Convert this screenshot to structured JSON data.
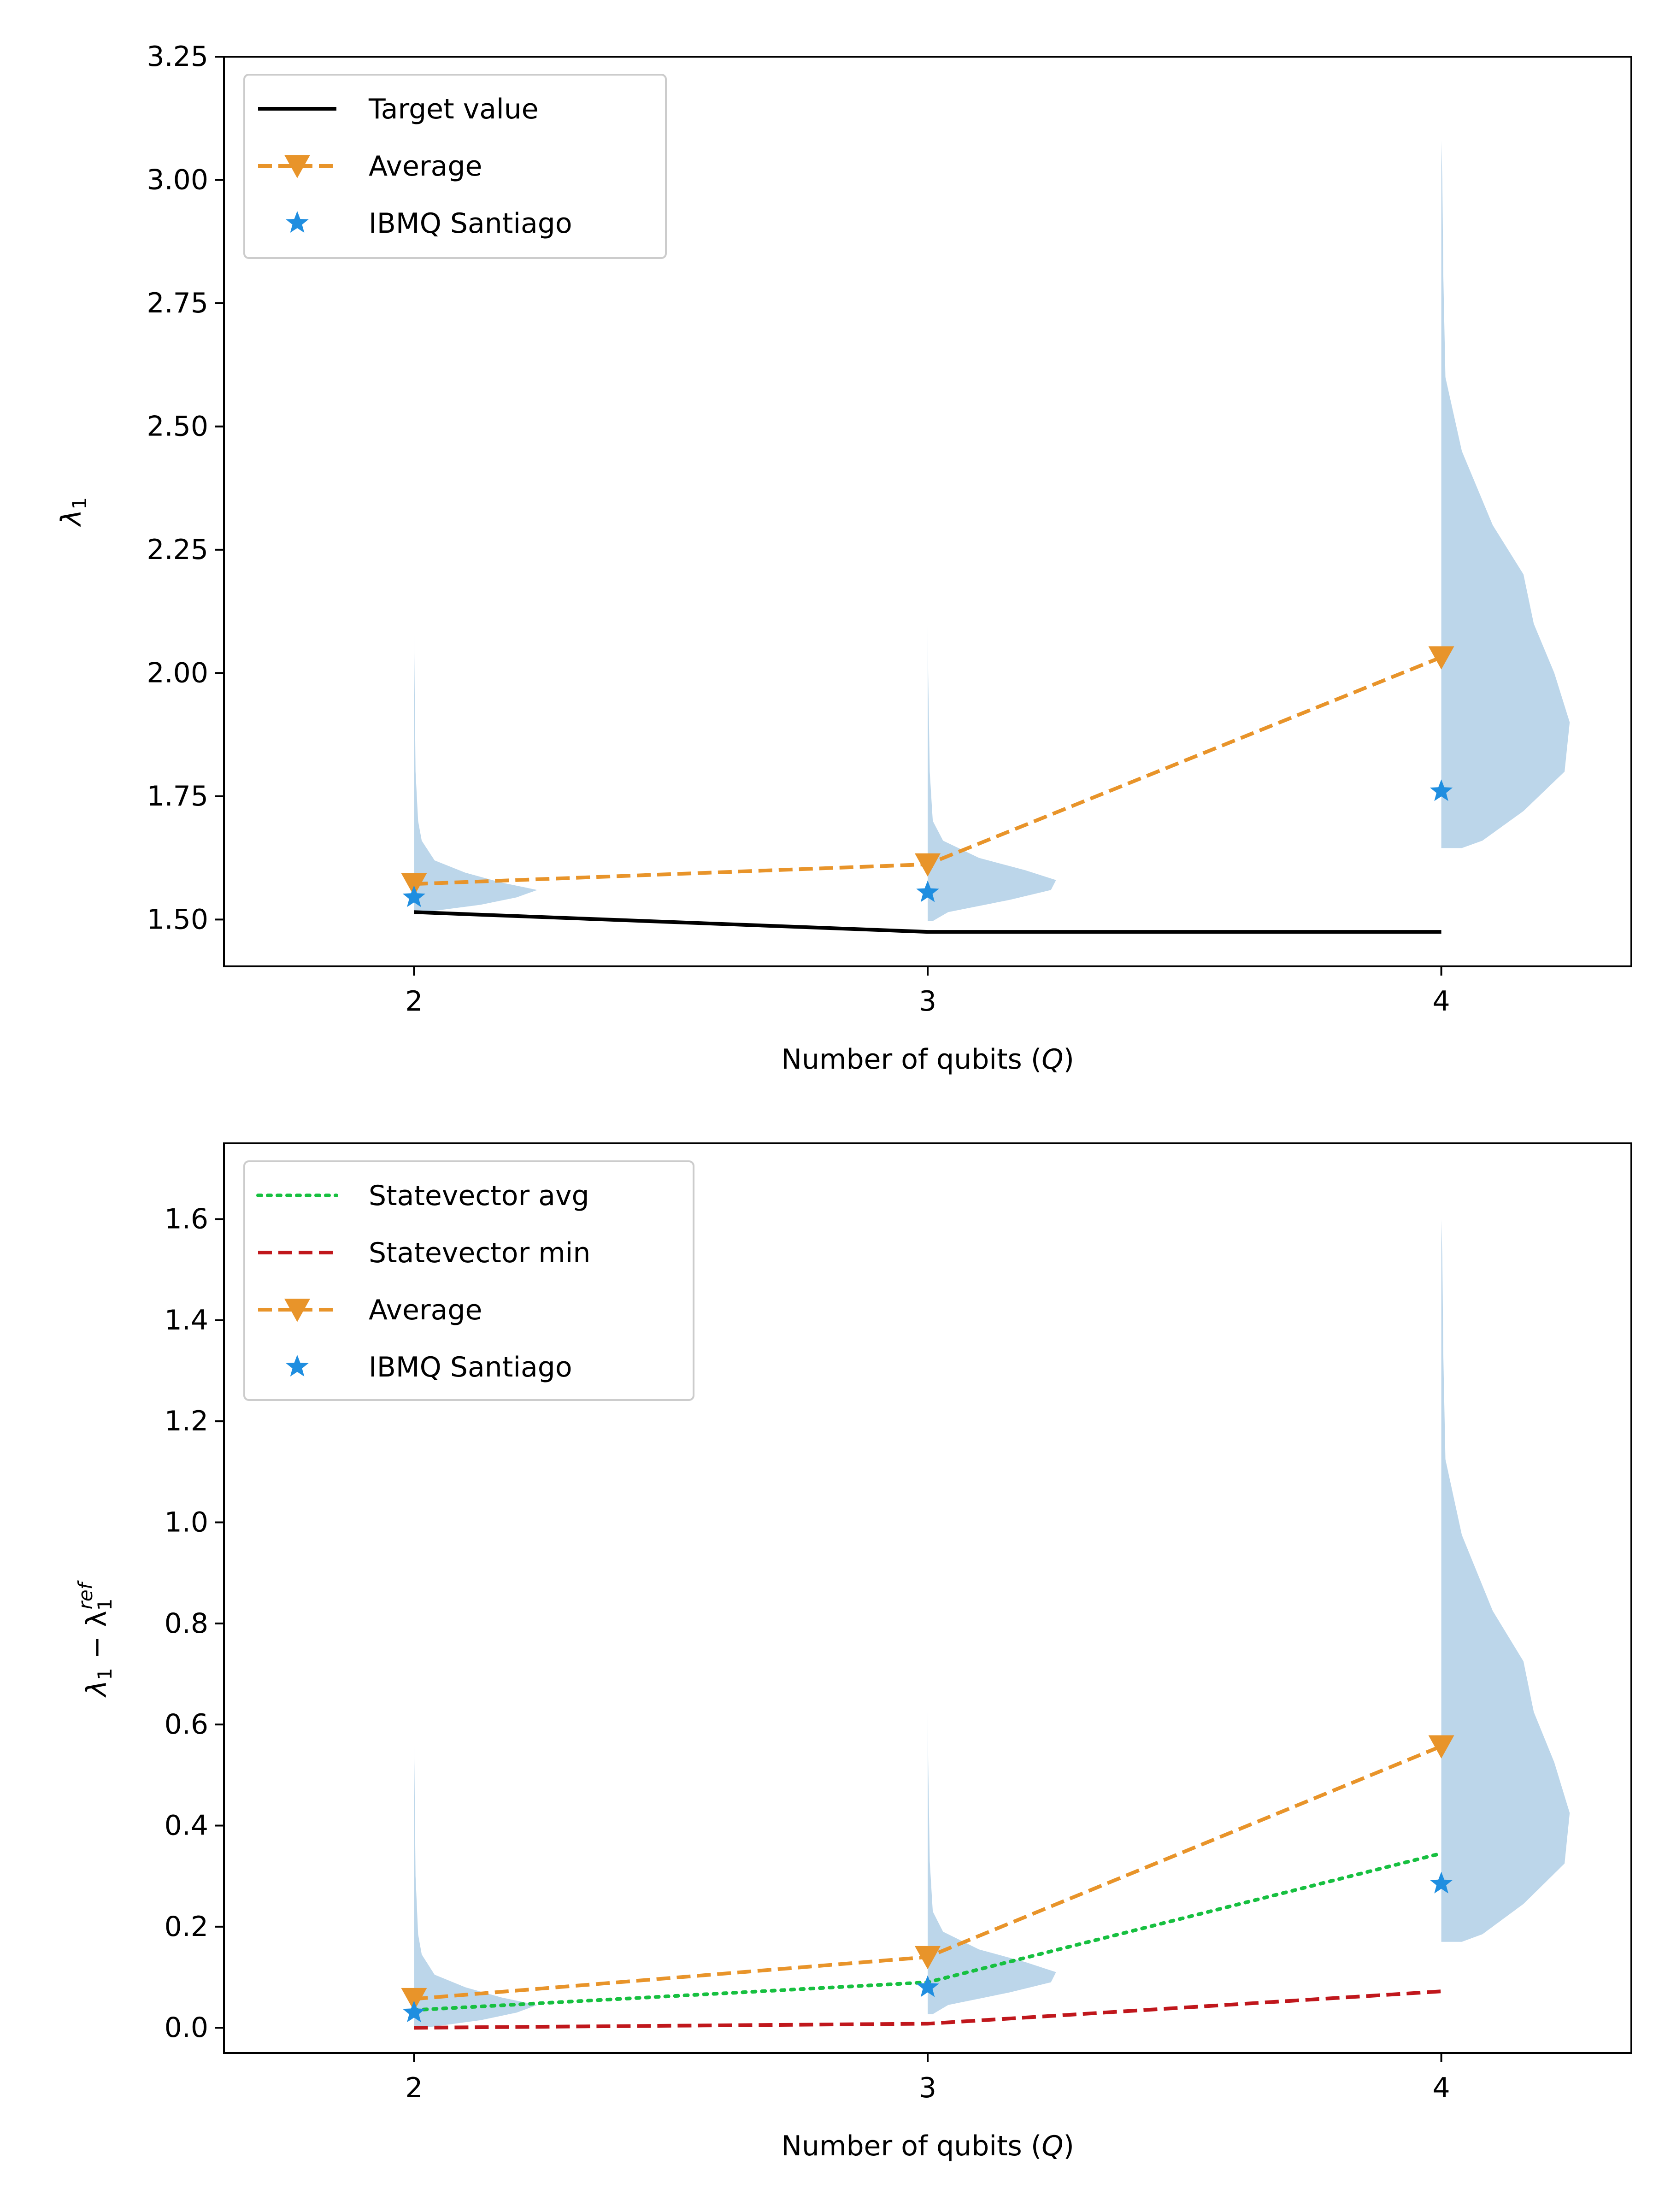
{
  "colors": {
    "target": "#000000",
    "average": "#e8942a",
    "ibmq": "#1f8ee0",
    "sv_avg": "#17c040",
    "sv_min": "#c0171c",
    "violin": "#bcd6ea"
  },
  "chart_data": [
    {
      "type": "line",
      "subtype": "violin-overlay",
      "xlabel": "Number of qubits (",
      "xlabel_var": "Q",
      "xlabel_end": ")",
      "ylabel_base": "λ",
      "ylabel_sub": "1",
      "x": [
        2,
        3,
        4
      ],
      "xlim": [
        1.63,
        4.37
      ],
      "ylim": [
        1.405,
        3.25
      ],
      "xticks": [
        2,
        3,
        4
      ],
      "xtick_labels": [
        "2",
        "3",
        "4"
      ],
      "yticks": [
        1.5,
        1.75,
        2.0,
        2.25,
        2.5,
        2.75,
        3.0,
        3.25
      ],
      "ytick_labels": [
        "1.50",
        "1.75",
        "2.00",
        "2.25",
        "2.50",
        "2.75",
        "3.00",
        "3.25"
      ],
      "legend_position": "top-left",
      "series": [
        {
          "name": "Target value",
          "style": "solid",
          "color_key": "target",
          "values": [
            1.515,
            1.475,
            1.475
          ]
        },
        {
          "name": "Average",
          "style": "dashed",
          "marker": "triangle-down",
          "color_key": "average",
          "values": [
            1.572,
            1.612,
            2.032
          ]
        },
        {
          "name": "IBMQ Santiago",
          "style": "none",
          "marker": "star",
          "color_key": "ibmq",
          "values": [
            1.545,
            1.555,
            1.76
          ]
        }
      ],
      "violins": [
        {
          "x": 2,
          "profile": [
            [
              1.515,
              0.02
            ],
            [
              1.53,
              0.13
            ],
            [
              1.545,
              0.2
            ],
            [
              1.56,
              0.24
            ],
            [
              1.575,
              0.17
            ],
            [
              1.595,
              0.1
            ],
            [
              1.62,
              0.04
            ],
            [
              1.66,
              0.015
            ],
            [
              1.7,
              0.008
            ],
            [
              1.8,
              0.003
            ],
            [
              2.0,
              0.001
            ],
            [
              2.09,
              0
            ]
          ]
        },
        {
          "x": 3,
          "profile": [
            [
              1.497,
              0.01
            ],
            [
              1.515,
              0.04
            ],
            [
              1.54,
              0.16
            ],
            [
              1.56,
              0.24
            ],
            [
              1.58,
              0.25
            ],
            [
              1.6,
              0.19
            ],
            [
              1.625,
              0.1
            ],
            [
              1.66,
              0.03
            ],
            [
              1.7,
              0.01
            ],
            [
              1.8,
              0.004
            ],
            [
              2.0,
              0.001
            ],
            [
              2.1,
              0
            ]
          ]
        },
        {
          "x": 4,
          "profile": [
            [
              1.645,
              0.04
            ],
            [
              1.66,
              0.08
            ],
            [
              1.72,
              0.16
            ],
            [
              1.8,
              0.24
            ],
            [
              1.9,
              0.25
            ],
            [
              2.0,
              0.22
            ],
            [
              2.1,
              0.18
            ],
            [
              2.2,
              0.16
            ],
            [
              2.3,
              0.1
            ],
            [
              2.45,
              0.04
            ],
            [
              2.6,
              0.008
            ],
            [
              2.8,
              0.004
            ],
            [
              3.0,
              0.002
            ],
            [
              3.08,
              0
            ]
          ]
        }
      ]
    },
    {
      "type": "line",
      "subtype": "violin-overlay",
      "xlabel": "Number of qubits (",
      "xlabel_var": "Q",
      "xlabel_end": ")",
      "ylabel_base": "λ",
      "ylabel_sub": "1",
      "ylabel_minus": " − λ",
      "ylabel_sup": "ref",
      "x": [
        2,
        3,
        4
      ],
      "xlim": [
        1.63,
        4.37
      ],
      "ylim": [
        -0.05,
        1.75
      ],
      "xticks": [
        2,
        3,
        4
      ],
      "xtick_labels": [
        "2",
        "3",
        "4"
      ],
      "yticks": [
        0.0,
        0.2,
        0.4,
        0.6,
        0.8,
        1.0,
        1.2,
        1.4,
        1.6
      ],
      "ytick_labels": [
        "0.0",
        "0.2",
        "0.4",
        "0.6",
        "0.8",
        "1.0",
        "1.2",
        "1.4",
        "1.6"
      ],
      "legend_position": "top-left",
      "series": [
        {
          "name": "Statevector avg",
          "style": "dotted",
          "color_key": "sv_avg",
          "values": [
            0.035,
            0.09,
            0.345
          ]
        },
        {
          "name": "Statevector min",
          "style": "dashed",
          "color_key": "sv_min",
          "values": [
            0.0,
            0.008,
            0.072
          ]
        },
        {
          "name": "Average",
          "style": "dashed",
          "marker": "triangle-down",
          "color_key": "average",
          "values": [
            0.057,
            0.14,
            0.557
          ]
        },
        {
          "name": "IBMQ Santiago",
          "style": "none",
          "marker": "star",
          "color_key": "ibmq",
          "values": [
            0.03,
            0.08,
            0.285
          ]
        }
      ],
      "violins": [
        {
          "x": 2,
          "profile": [
            [
              0.0,
              0.02
            ],
            [
              0.015,
              0.13
            ],
            [
              0.03,
              0.2
            ],
            [
              0.045,
              0.24
            ],
            [
              0.06,
              0.17
            ],
            [
              0.08,
              0.1
            ],
            [
              0.105,
              0.04
            ],
            [
              0.145,
              0.015
            ],
            [
              0.185,
              0.008
            ],
            [
              0.3,
              0.003
            ],
            [
              0.5,
              0.001
            ],
            [
              0.57,
              0
            ]
          ]
        },
        {
          "x": 3,
          "profile": [
            [
              0.027,
              0.01
            ],
            [
              0.045,
              0.04
            ],
            [
              0.07,
              0.16
            ],
            [
              0.09,
              0.24
            ],
            [
              0.11,
              0.25
            ],
            [
              0.13,
              0.19
            ],
            [
              0.155,
              0.1
            ],
            [
              0.19,
              0.03
            ],
            [
              0.23,
              0.01
            ],
            [
              0.33,
              0.004
            ],
            [
              0.53,
              0.001
            ],
            [
              0.63,
              0
            ]
          ]
        },
        {
          "x": 4,
          "profile": [
            [
              0.17,
              0.04
            ],
            [
              0.185,
              0.08
            ],
            [
              0.245,
              0.16
            ],
            [
              0.325,
              0.24
            ],
            [
              0.425,
              0.25
            ],
            [
              0.525,
              0.22
            ],
            [
              0.625,
              0.18
            ],
            [
              0.725,
              0.16
            ],
            [
              0.825,
              0.1
            ],
            [
              0.975,
              0.04
            ],
            [
              1.125,
              0.008
            ],
            [
              1.325,
              0.004
            ],
            [
              1.525,
              0.002
            ],
            [
              1.6,
              0
            ]
          ]
        }
      ]
    }
  ]
}
